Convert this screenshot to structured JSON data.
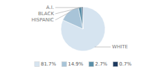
{
  "chart_data": {
    "type": "pie",
    "categories": [
      "WHITE",
      "HISPANIC",
      "BLACK",
      "A.I."
    ],
    "values": [
      81.7,
      14.9,
      2.7,
      0.7
    ],
    "value_labels": [
      "81.7%",
      "14.9%",
      "2.7%",
      "0.7%"
    ],
    "colors": [
      "#d6e4f0",
      "#a8c4d8",
      "#5b8fa8",
      "#1e3a5f"
    ],
    "legend": "bottom"
  }
}
